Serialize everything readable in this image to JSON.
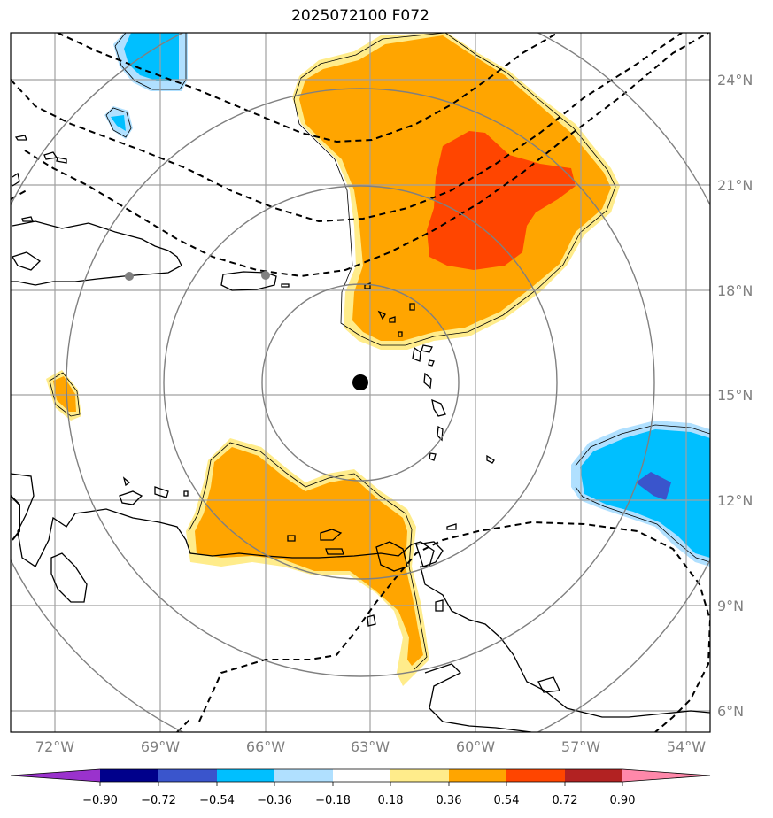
{
  "title": "2025072100 F072",
  "map": {
    "lon_labels": [
      "72°W",
      "69°W",
      "66°W",
      "63°W",
      "60°W",
      "57°W",
      "54°W"
    ],
    "lat_labels": [
      "24°N",
      "21°N",
      "18°N",
      "15°N",
      "12°N",
      "9°N",
      "6°N"
    ],
    "grid_color": "#a0a0a0",
    "range_ring_color": "#808080",
    "center_marker": "storm-center-dot"
  },
  "colorbar": {
    "tick_labels": [
      "−0.90",
      "−0.72",
      "−0.54",
      "−0.36",
      "−0.18",
      "0.18",
      "0.36",
      "0.54",
      "0.72",
      "0.90"
    ],
    "colors": [
      "#9a32cd",
      "#00008b",
      "#3a55cc",
      "#00bfff",
      "#b0e0ff",
      "#ffffff",
      "#ffec8b",
      "#ffa500",
      "#ff4500",
      "#b22222",
      "#ff88aa"
    ]
  },
  "fill_colors": {
    "orange": "#ffa500",
    "light_yellow": "#ffec8b",
    "red_orange": "#ff4500",
    "sky_blue": "#00bfff",
    "light_blue": "#b0e0ff",
    "royal_blue": "#3a55cc"
  }
}
